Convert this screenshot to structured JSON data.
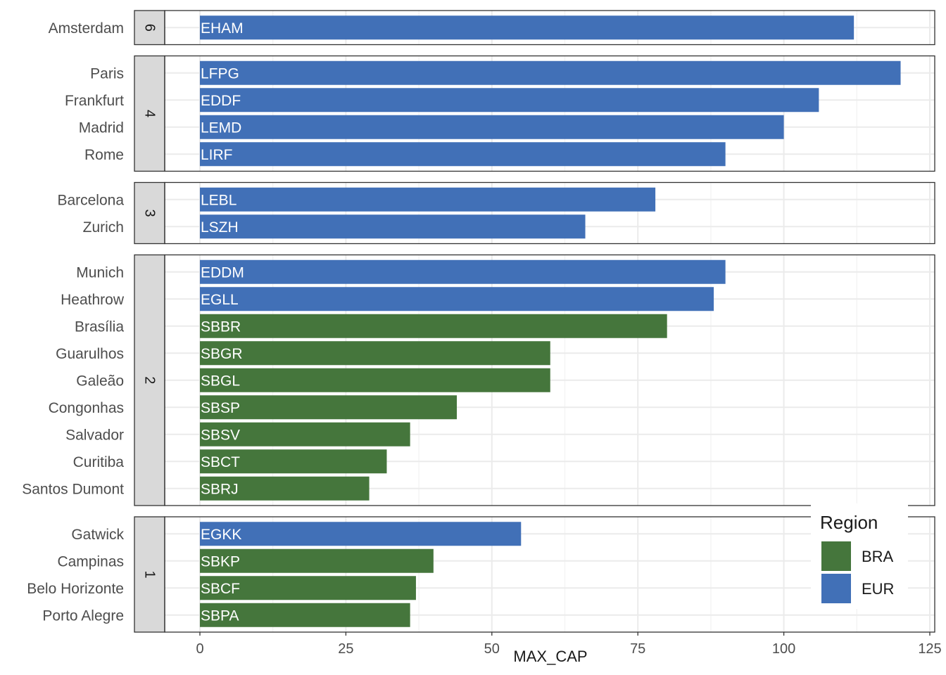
{
  "chart_data": {
    "type": "bar",
    "orientation": "horizontal",
    "xlabel": "MAX_CAP",
    "ylabel": "",
    "xlim": [
      0,
      125
    ],
    "xticks": [
      0,
      25,
      50,
      75,
      100,
      125
    ],
    "grid": true,
    "legend": {
      "title": "Region",
      "placement": "bottom-right",
      "entries": [
        {
          "name": "BRA",
          "color": "#45763c"
        },
        {
          "name": "EUR",
          "color": "#4170b7"
        }
      ]
    },
    "facets": [
      {
        "label": "6",
        "bars": [
          {
            "category": "Amsterdam",
            "code": "EHAM",
            "value": 112,
            "region": "EUR"
          }
        ]
      },
      {
        "label": "4",
        "bars": [
          {
            "category": "Paris",
            "code": "LFPG",
            "value": 120,
            "region": "EUR"
          },
          {
            "category": "Frankfurt",
            "code": "EDDF",
            "value": 106,
            "region": "EUR"
          },
          {
            "category": "Madrid",
            "code": "LEMD",
            "value": 100,
            "region": "EUR"
          },
          {
            "category": "Rome",
            "code": "LIRF",
            "value": 90,
            "region": "EUR"
          }
        ]
      },
      {
        "label": "3",
        "bars": [
          {
            "category": "Barcelona",
            "code": "LEBL",
            "value": 78,
            "region": "EUR"
          },
          {
            "category": "Zurich",
            "code": "LSZH",
            "value": 66,
            "region": "EUR"
          }
        ]
      },
      {
        "label": "2",
        "bars": [
          {
            "category": "Munich",
            "code": "EDDM",
            "value": 90,
            "region": "EUR"
          },
          {
            "category": "Heathrow",
            "code": "EGLL",
            "value": 88,
            "region": "EUR"
          },
          {
            "category": "Brasília",
            "code": "SBBR",
            "value": 80,
            "region": "BRA"
          },
          {
            "category": "Guarulhos",
            "code": "SBGR",
            "value": 60,
            "region": "BRA"
          },
          {
            "category": "Galeão",
            "code": "SBGL",
            "value": 60,
            "region": "BRA"
          },
          {
            "category": "Congonhas",
            "code": "SBSP",
            "value": 44,
            "region": "BRA"
          },
          {
            "category": "Salvador",
            "code": "SBSV",
            "value": 36,
            "region": "BRA"
          },
          {
            "category": "Curitiba",
            "code": "SBCT",
            "value": 32,
            "region": "BRA"
          },
          {
            "category": "Santos Dumont",
            "code": "SBRJ",
            "value": 29,
            "region": "BRA"
          }
        ]
      },
      {
        "label": "1",
        "bars": [
          {
            "category": "Gatwick",
            "code": "EGKK",
            "value": 55,
            "region": "EUR"
          },
          {
            "category": "Campinas",
            "code": "SBKP",
            "value": 40,
            "region": "BRA"
          },
          {
            "category": "Belo Horizonte",
            "code": "SBCF",
            "value": 37,
            "region": "BRA"
          },
          {
            "category": "Porto Alegre",
            "code": "SBPA",
            "value": 36,
            "region": "BRA"
          }
        ]
      }
    ]
  }
}
